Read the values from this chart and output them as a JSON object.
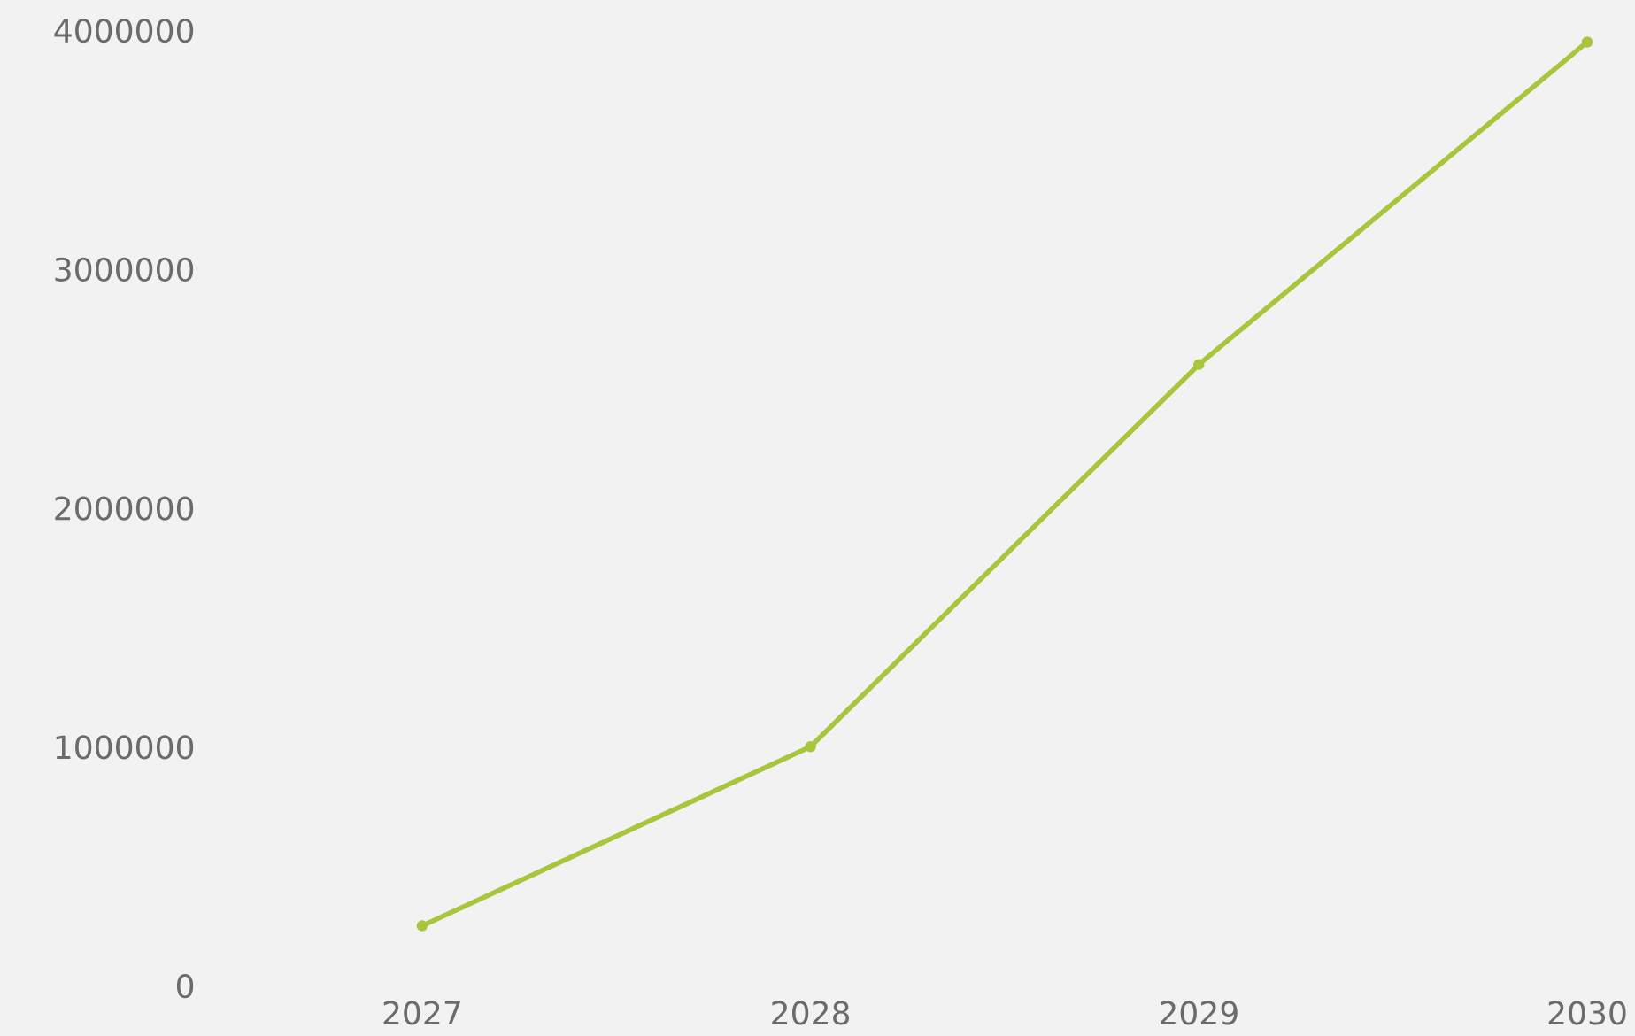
{
  "chart_data": {
    "type": "line",
    "categories": [
      "2027",
      "2028",
      "2029",
      "2030"
    ],
    "series": [
      {
        "color": "#a8c63c",
        "values": [
          250000,
          1000000,
          2600000,
          3950000
        ]
      }
    ],
    "ylim": [
      0,
      4000000
    ],
    "yticks": [
      0,
      1000000,
      2000000,
      3000000,
      4000000
    ],
    "grid": false,
    "marker": "circle",
    "line_style": "solid"
  }
}
